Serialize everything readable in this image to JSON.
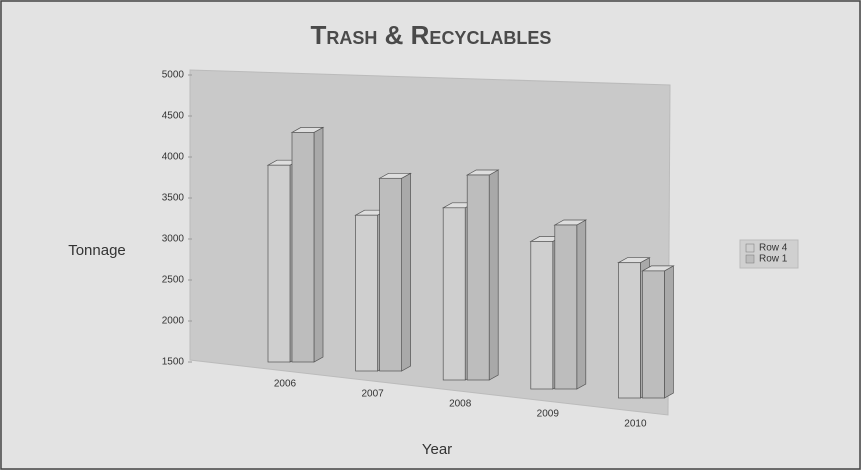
{
  "chart_data": {
    "type": "bar3d",
    "title": "Trash & Recyclables",
    "x_label": "Year",
    "y_label": "Tonnage",
    "categories": [
      "2006",
      "2007",
      "2008",
      "2009",
      "2010"
    ],
    "series": [
      {
        "name": "Row 4",
        "color": "#cfcfcf",
        "values": [
          3900,
          3400,
          3600,
          3300,
          3150
        ]
      },
      {
        "name": "Row 1",
        "color": "#bdbdbd",
        "values": [
          4300,
          3850,
          4000,
          3500,
          3050
        ]
      }
    ],
    "ylim": [
      1500,
      5000
    ],
    "yticks": [
      1500,
      2000,
      2500,
      3000,
      3500,
      4000,
      4500,
      5000
    ],
    "legend": "right"
  }
}
